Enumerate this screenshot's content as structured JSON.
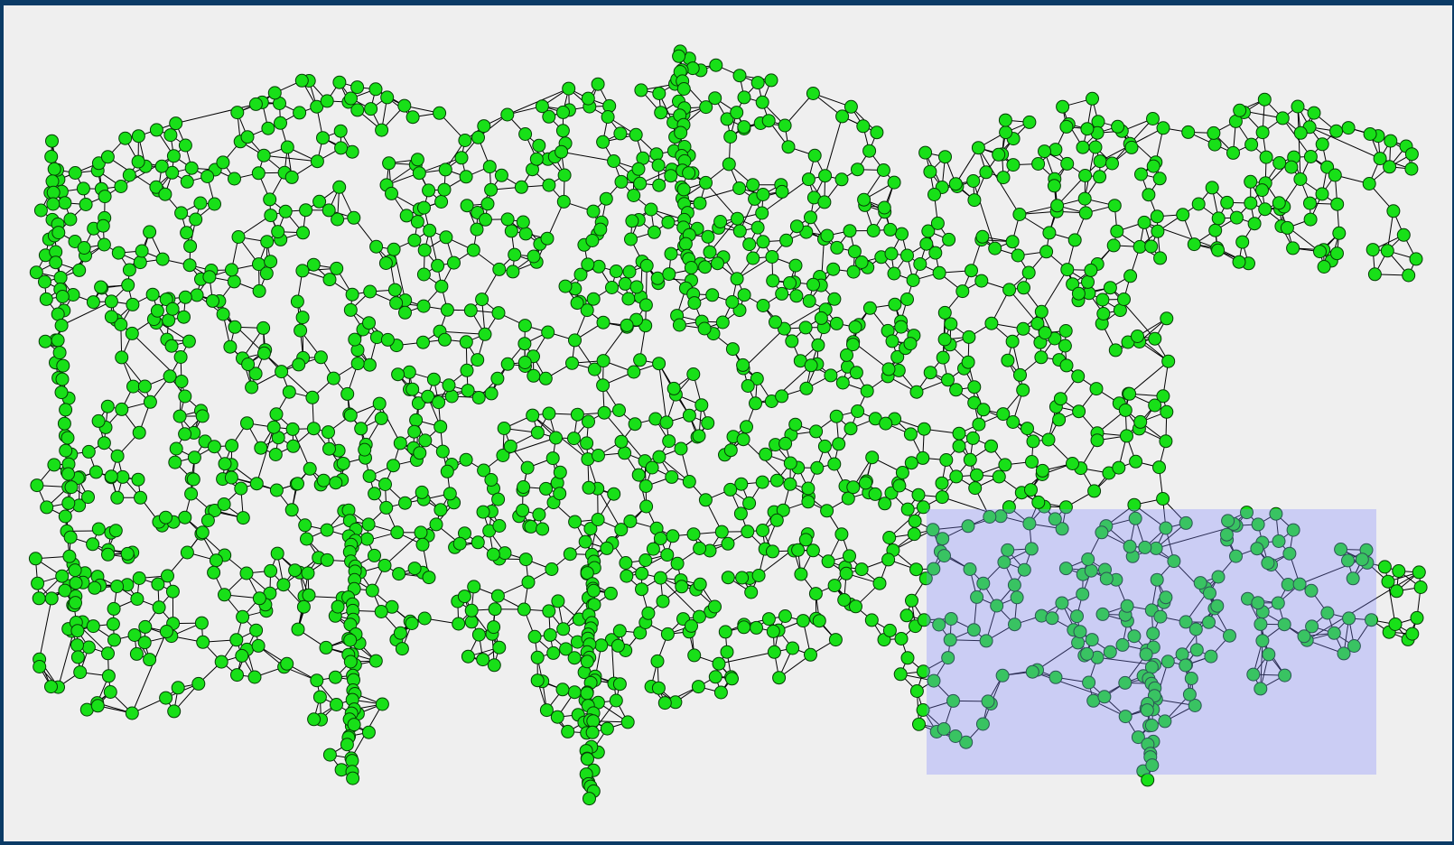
{
  "window": {
    "background": "#efefef",
    "border_color": "#0b3b66"
  },
  "graph": {
    "node_color": "#18e018",
    "node_border_color": "#063d06",
    "edge_color": "#000000"
  },
  "selection": {
    "color": "#7f87ff",
    "opacity": 0.32
  }
}
